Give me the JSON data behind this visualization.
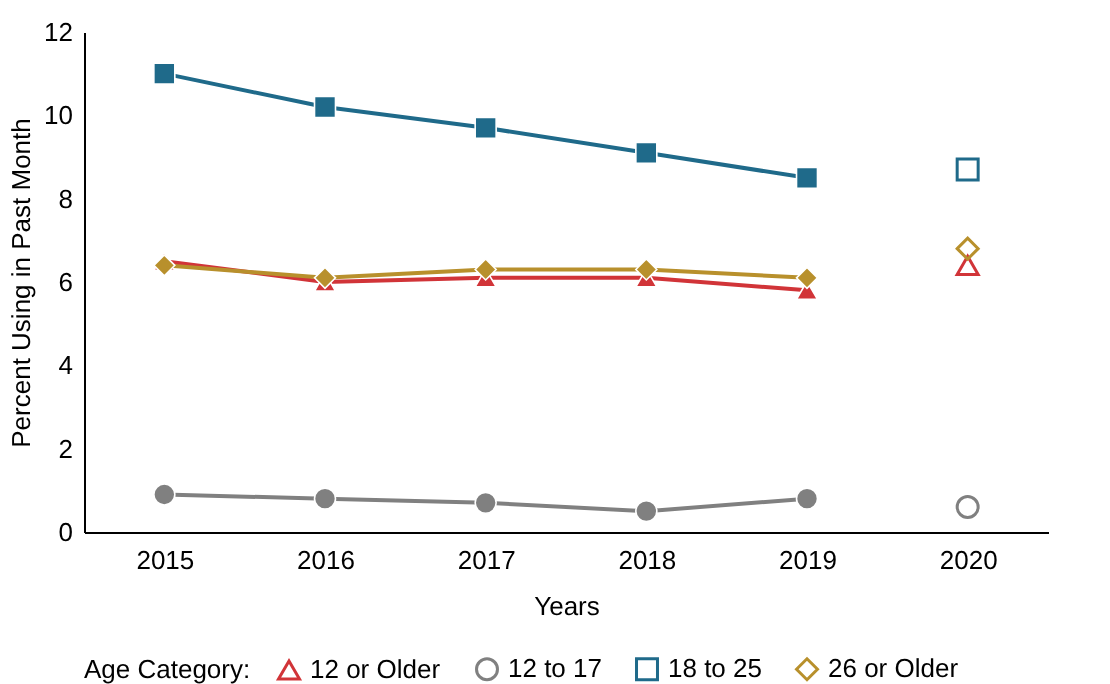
{
  "chart_data": {
    "type": "line",
    "xlabel": "Years",
    "ylabel": "Percent Using in Past Month",
    "legend_title": "Age Category:",
    "legend": "bottom",
    "grid": false,
    "categories": [
      "2015",
      "2016",
      "2017",
      "2018",
      "2019",
      "2020"
    ],
    "ylim": [
      0,
      12
    ],
    "yticks": [
      0,
      2,
      4,
      6,
      8,
      10,
      12
    ],
    "series": [
      {
        "name": "12 or Older",
        "color": "#d13438",
        "marker": "triangle",
        "values": [
          6.5,
          6.0,
          6.1,
          6.1,
          5.8,
          null
        ]
      },
      {
        "name": "12 to 17",
        "color": "#808080",
        "marker": "circle",
        "values": [
          0.9,
          0.8,
          0.7,
          0.5,
          0.8,
          null
        ]
      },
      {
        "name": "18 to 25",
        "color": "#1f6a8a",
        "marker": "square",
        "values": [
          11.0,
          10.2,
          9.7,
          9.1,
          8.5,
          null
        ]
      },
      {
        "name": "26 or Older",
        "color": "#b8902c",
        "marker": "diamond",
        "values": [
          6.4,
          6.1,
          6.3,
          6.3,
          6.1,
          null
        ]
      },
      {
        "type": "scatter",
        "color": "#d13438",
        "marker": "triangle",
        "values": [
          null,
          null,
          null,
          null,
          null,
          6.4
        ]
      },
      {
        "type": "scatter",
        "color": "#808080",
        "marker": "circle",
        "values": [
          null,
          null,
          null,
          null,
          null,
          0.6
        ]
      },
      {
        "type": "scatter",
        "color": "#1f6a8a",
        "marker": "square",
        "values": [
          null,
          null,
          null,
          null,
          null,
          8.7
        ]
      },
      {
        "type": "scatter",
        "color": "#b8902c",
        "marker": "diamond",
        "values": [
          null,
          null,
          null,
          null,
          null,
          6.8
        ]
      }
    ]
  }
}
